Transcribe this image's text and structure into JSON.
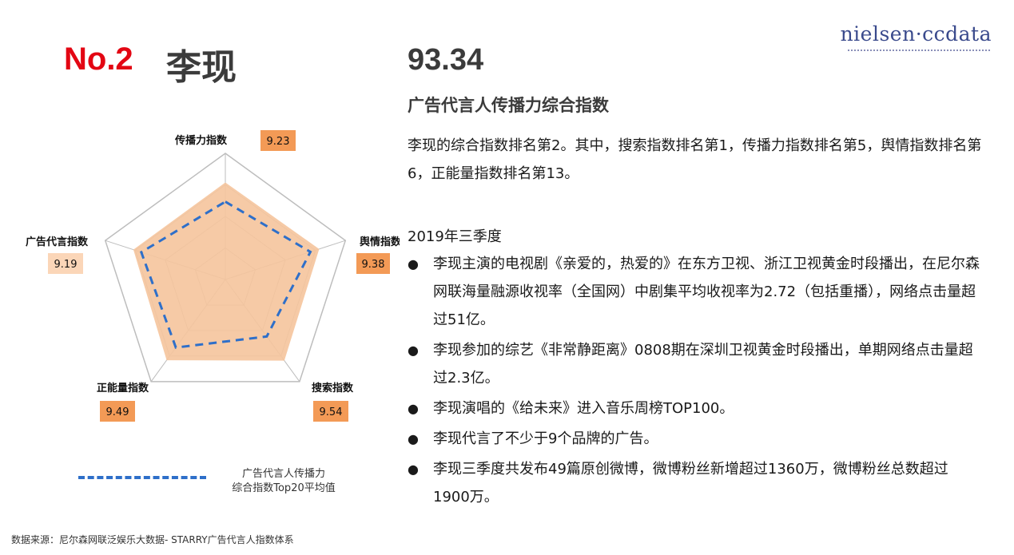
{
  "header": {
    "rank": "No.2",
    "name": "李现",
    "score": "93.34",
    "subtitle": "广告代言人传播力综合指数",
    "logo": "nielsen·ccdata"
  },
  "summary": "李现的综合指数排名第2。其中，搜索指数排名第1，传播力指数排名第5，舆情指数排名第6，正能量指数排名第13。",
  "quarter_label": "2019年三季度",
  "bullets": [
    "李现主演的电视剧《亲爱的，热爱的》在东方卫视、浙江卫视黄金时段播出，在尼尔森网联海量融源收视率（全国网）中剧集平均收视率为2.72（包括重播），网络点击量超过51亿。",
    "李现参加的综艺《非常静距离》0808期在深圳卫视黄金时段播出，单期网络点击量超过2.3亿。",
    "李现演唱的《给未来》进入音乐周榜TOP100。",
    "李现代言了不少于9个品牌的广告。",
    "李现三季度共发布49篇原创微博，微博粉丝新增超过1360万，微博粉丝总数超过1900万。"
  ],
  "legend": {
    "line1": "广告代言人传播力",
    "line2": "综合指数Top20平均值"
  },
  "source": "数据来源：尼尔森网联泛娱乐大数据- STARRY广告代言人指数体系",
  "colors": {
    "rank": "#e30613",
    "fill": "#f5c49c",
    "badge_dark": "#f39a56",
    "badge_light": "#fbd6b8",
    "avg_line": "#2e6fc9"
  },
  "chart_data": {
    "type": "radar",
    "axes": [
      "传播力指数",
      "舆情指数",
      "搜索指数",
      "正能量指数",
      "广告代言指数"
    ],
    "series": [
      {
        "values": [
          9.23,
          9.38,
          9.54,
          9.49,
          9.19
        ]
      },
      {
        "name": "广告代言人传播力综合指数Top20平均值",
        "values": [
          7.4,
          8.5,
          6.7,
          8.0,
          8.4
        ]
      }
    ],
    "scale_min": 0,
    "scale_max": 12,
    "rings": 4
  }
}
